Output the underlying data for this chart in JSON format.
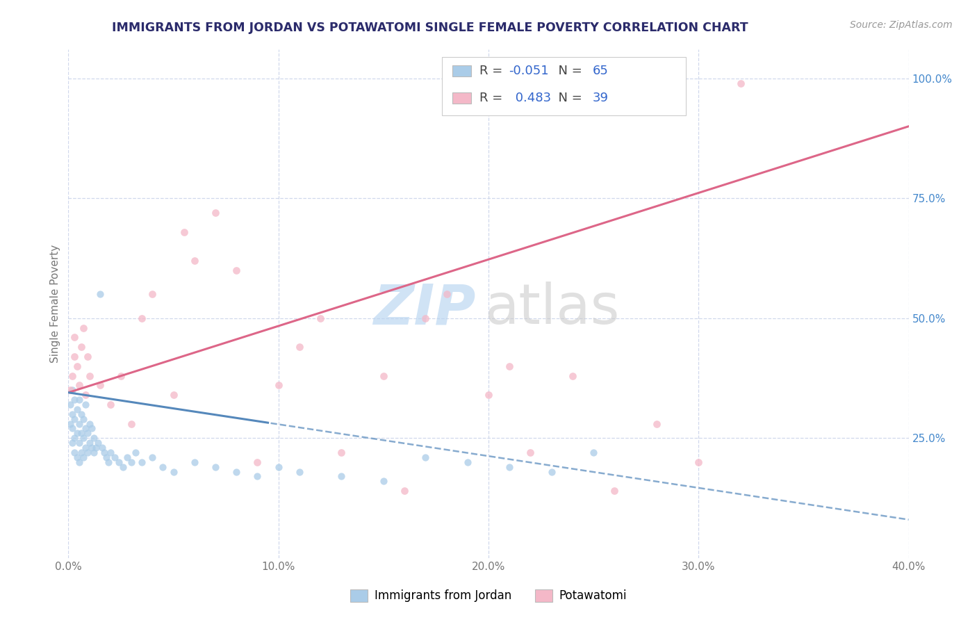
{
  "title": "IMMIGRANTS FROM JORDAN VS POTAWATOMI SINGLE FEMALE POVERTY CORRELATION CHART",
  "source_text": "Source: ZipAtlas.com",
  "ylabel": "Single Female Poverty",
  "watermark_zip": "ZIP",
  "watermark_atlas": "atlas",
  "xlim_min": 0.0,
  "xlim_max": 0.4,
  "ylim_min": 0.0,
  "ylim_max": 1.06,
  "xtick_labels": [
    "0.0%",
    "10.0%",
    "20.0%",
    "30.0%",
    "40.0%"
  ],
  "xtick_vals": [
    0.0,
    0.1,
    0.2,
    0.3,
    0.4
  ],
  "ytick_vals_right": [
    0.25,
    0.5,
    0.75,
    1.0
  ],
  "ytick_labels_right": [
    "25.0%",
    "50.0%",
    "75.0%",
    "100.0%"
  ],
  "blue_R": -0.051,
  "blue_N": 65,
  "pink_R": 0.483,
  "pink_N": 39,
  "blue_scatter_color": "#aacce8",
  "pink_scatter_color": "#f4b8c8",
  "blue_line_color": "#5588bb",
  "pink_line_color": "#dd6688",
  "grid_color": "#d0d8ec",
  "bg_color": "#ffffff",
  "title_color": "#2b2b6b",
  "source_color": "#999999",
  "legend_label_blue": "Immigrants from Jordan",
  "legend_label_pink": "Potawatomi",
  "r_value_color": "#3366cc",
  "watermark_color": "#cce0f5",
  "blue_x": [
    0.001,
    0.001,
    0.002,
    0.002,
    0.002,
    0.002,
    0.003,
    0.003,
    0.003,
    0.003,
    0.004,
    0.004,
    0.004,
    0.005,
    0.005,
    0.005,
    0.005,
    0.006,
    0.006,
    0.006,
    0.007,
    0.007,
    0.007,
    0.008,
    0.008,
    0.008,
    0.009,
    0.009,
    0.01,
    0.01,
    0.011,
    0.011,
    0.012,
    0.012,
    0.013,
    0.014,
    0.015,
    0.016,
    0.017,
    0.018,
    0.019,
    0.02,
    0.022,
    0.024,
    0.026,
    0.028,
    0.03,
    0.032,
    0.035,
    0.04,
    0.045,
    0.05,
    0.06,
    0.07,
    0.08,
    0.09,
    0.1,
    0.11,
    0.13,
    0.15,
    0.17,
    0.19,
    0.21,
    0.23,
    0.25
  ],
  "blue_y": [
    0.28,
    0.32,
    0.24,
    0.27,
    0.3,
    0.35,
    0.22,
    0.25,
    0.29,
    0.33,
    0.21,
    0.26,
    0.31,
    0.2,
    0.24,
    0.28,
    0.33,
    0.22,
    0.26,
    0.3,
    0.21,
    0.25,
    0.29,
    0.23,
    0.27,
    0.32,
    0.22,
    0.26,
    0.24,
    0.28,
    0.23,
    0.27,
    0.22,
    0.25,
    0.23,
    0.24,
    0.55,
    0.23,
    0.22,
    0.21,
    0.2,
    0.22,
    0.21,
    0.2,
    0.19,
    0.21,
    0.2,
    0.22,
    0.2,
    0.21,
    0.19,
    0.18,
    0.2,
    0.19,
    0.18,
    0.17,
    0.19,
    0.18,
    0.17,
    0.16,
    0.21,
    0.2,
    0.19,
    0.18,
    0.22
  ],
  "pink_x": [
    0.001,
    0.002,
    0.003,
    0.003,
    0.004,
    0.005,
    0.006,
    0.007,
    0.008,
    0.009,
    0.01,
    0.015,
    0.02,
    0.025,
    0.03,
    0.035,
    0.04,
    0.05,
    0.055,
    0.06,
    0.07,
    0.08,
    0.09,
    0.1,
    0.11,
    0.12,
    0.13,
    0.15,
    0.16,
    0.17,
    0.18,
    0.2,
    0.21,
    0.22,
    0.24,
    0.26,
    0.28,
    0.3,
    0.32
  ],
  "pink_y": [
    0.35,
    0.38,
    0.42,
    0.46,
    0.4,
    0.36,
    0.44,
    0.48,
    0.34,
    0.42,
    0.38,
    0.36,
    0.32,
    0.38,
    0.28,
    0.5,
    0.55,
    0.34,
    0.68,
    0.62,
    0.72,
    0.6,
    0.2,
    0.36,
    0.44,
    0.5,
    0.22,
    0.38,
    0.14,
    0.5,
    0.55,
    0.34,
    0.4,
    0.22,
    0.38,
    0.14,
    0.28,
    0.2,
    0.99
  ]
}
